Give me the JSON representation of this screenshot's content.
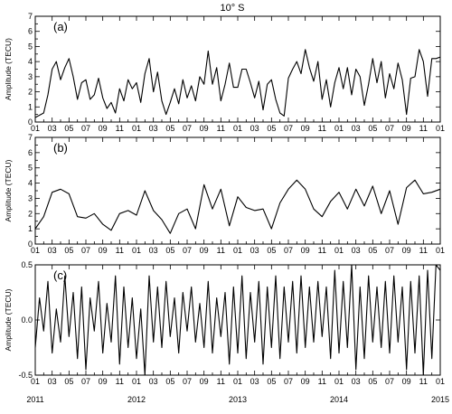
{
  "title": "10° S",
  "chart_data": [
    {
      "type": "line",
      "panel_tag": "(a)",
      "ylabel": "Amplitude (TECU)",
      "ylim": [
        0,
        7
      ],
      "yticks": [
        "0",
        "1",
        "2",
        "3",
        "4",
        "5",
        "6",
        "7"
      ],
      "xlim": [
        0,
        48
      ],
      "month_ticks": [
        "01",
        "03",
        "05",
        "07",
        "09",
        "11",
        "01",
        "03",
        "05",
        "07",
        "09",
        "11",
        "01",
        "03",
        "05",
        "07",
        "09",
        "11",
        "01",
        "03",
        "05",
        "07",
        "09",
        "11",
        "01"
      ],
      "series": [
        {
          "x": [
            0,
            1,
            1.5,
            2,
            2.5,
            3,
            3.5,
            4,
            4.5,
            5,
            5.5,
            6,
            6.5,
            7,
            7.5,
            8,
            8.5,
            9,
            9.5,
            10,
            10.5,
            11,
            11.5,
            12,
            12.5,
            13,
            13.5,
            14,
            14.5,
            15,
            15.5,
            16,
            16.5,
            17,
            17.5,
            18,
            18.5,
            19,
            19.5,
            20,
            20.5,
            21,
            21.5,
            22,
            22.5,
            23,
            23.5,
            24,
            24.5,
            25,
            25.5,
            26,
            26.5,
            27,
            27.5,
            28,
            28.5,
            29,
            29.5,
            30,
            30.5,
            31,
            31.5,
            32,
            32.5,
            33,
            33.5,
            34,
            34.5,
            35,
            35.5,
            36,
            36.5,
            37,
            37.5,
            38,
            38.5,
            39,
            39.5,
            40,
            40.5,
            41,
            41.5,
            42,
            42.5,
            43,
            43.5,
            44,
            44.5,
            45,
            45.5,
            46,
            46.5,
            47,
            47.5,
            48
          ],
          "y": [
            0.3,
            0.6,
            1.8,
            3.5,
            4,
            2.8,
            3.6,
            4.2,
            3,
            1.5,
            2.6,
            2.8,
            1.5,
            1.8,
            2.9,
            1.6,
            0.9,
            1.3,
            0.6,
            2.2,
            1.4,
            2.8,
            2.2,
            2.6,
            1.3,
            3.2,
            4.2,
            2,
            3.3,
            1.4,
            0.5,
            1.3,
            2.2,
            1.2,
            2.8,
            1.6,
            2.4,
            1.4,
            3,
            2.5,
            4.7,
            2.5,
            3.6,
            1.4,
            2.5,
            3.9,
            2.3,
            2.3,
            3.5,
            3.5,
            2.6,
            1.6,
            2.7,
            0.8,
            2.5,
            2.8,
            1.5,
            0.6,
            0.4,
            2.9,
            3.5,
            4,
            3.2,
            4.8,
            3.6,
            2.7,
            4,
            1.5,
            2.8,
            1,
            2.6,
            3.6,
            2.2,
            3.6,
            1.8,
            3.5,
            3,
            1.1,
            2.5,
            4.2,
            2.6,
            4,
            1.6,
            3.2,
            2.2,
            3.9,
            2.8,
            0.5,
            2.9,
            3,
            4.8,
            4,
            1.7,
            4.2,
            4.2,
            4.3
          ]
        }
      ]
    },
    {
      "type": "line",
      "panel_tag": "(b)",
      "ylabel": "Amplitude (TECU)",
      "ylim": [
        0,
        7
      ],
      "yticks": [
        "0",
        "1",
        "2",
        "3",
        "4",
        "5",
        "6",
        "7"
      ],
      "xlim": [
        0,
        48
      ],
      "month_ticks": [
        "01",
        "03",
        "05",
        "07",
        "09",
        "11",
        "01",
        "03",
        "05",
        "07",
        "09",
        "11",
        "01",
        "03",
        "05",
        "07",
        "09",
        "11",
        "01",
        "03",
        "05",
        "07",
        "09",
        "11",
        "01"
      ],
      "series": [
        {
          "x": [
            0,
            1,
            2,
            3,
            4,
            5,
            6,
            7,
            8,
            9,
            10,
            11,
            12,
            13,
            14,
            15,
            16,
            17,
            18,
            19,
            20,
            21,
            22,
            23,
            24,
            25,
            26,
            27,
            28,
            29,
            30,
            31,
            32,
            33,
            34,
            35,
            36,
            37,
            38,
            39,
            40,
            41,
            42,
            43,
            44,
            45,
            46,
            47,
            48
          ],
          "y": [
            1,
            1.8,
            3.4,
            3.6,
            3.3,
            1.8,
            1.7,
            2,
            1.3,
            0.9,
            2,
            2.2,
            1.9,
            3.5,
            2.2,
            1.6,
            0.7,
            2,
            2.3,
            1,
            3.9,
            2.3,
            3.6,
            1.2,
            3.1,
            2.4,
            2.2,
            2.3,
            1,
            2.7,
            3.6,
            4.2,
            3.6,
            2.3,
            1.8,
            2.8,
            3.4,
            2.3,
            3.6,
            2.5,
            3.8,
            2,
            3.5,
            1.3,
            3.7,
            4.2,
            3.3,
            3.4,
            3.6
          ]
        }
      ]
    },
    {
      "type": "line",
      "panel_tag": "(c)",
      "ylabel": "Amplitude (TECU)",
      "ylim": [
        -0.5,
        0.5
      ],
      "yticks": [
        "-0.5",
        "0.0",
        "0.5"
      ],
      "xlim": [
        0,
        48
      ],
      "month_ticks": [
        "01",
        "03",
        "05",
        "07",
        "09",
        "11",
        "01",
        "03",
        "05",
        "07",
        "09",
        "11",
        "01",
        "03",
        "05",
        "07",
        "09",
        "11",
        "01",
        "03",
        "05",
        "07",
        "09",
        "11",
        "01"
      ],
      "year_labels": [
        "2011",
        "2012",
        "2013",
        "2014",
        "2015"
      ],
      "series": [
        {
          "x": [
            0,
            0.5,
            1,
            1.5,
            2,
            2.5,
            3,
            3.5,
            4,
            4.5,
            5,
            5.5,
            6,
            6.5,
            7,
            7.5,
            8,
            8.5,
            9,
            9.5,
            10,
            10.5,
            11,
            11.5,
            12,
            12.5,
            13,
            13.5,
            14,
            14.5,
            15,
            15.5,
            16,
            16.5,
            17,
            17.5,
            18,
            18.5,
            19,
            19.5,
            20,
            20.5,
            21,
            21.5,
            22,
            22.5,
            23,
            23.5,
            24,
            24.5,
            25,
            25.5,
            26,
            26.5,
            27,
            27.5,
            28,
            28.5,
            29,
            29.5,
            30,
            30.5,
            31,
            31.5,
            32,
            32.5,
            33,
            33.5,
            34,
            34.5,
            35,
            35.5,
            36,
            36.5,
            37,
            37.5,
            38,
            38.5,
            39,
            39.5,
            40,
            40.5,
            41,
            41.5,
            42,
            42.5,
            43,
            43.5,
            44,
            44.5,
            45,
            45.5,
            46,
            46.5,
            47,
            47.5,
            48
          ],
          "y": [
            -0.25,
            0.2,
            -0.1,
            0.35,
            -0.3,
            0.1,
            -0.2,
            0.4,
            -0.15,
            0.25,
            -0.35,
            0.3,
            -0.45,
            0.2,
            -0.1,
            0.35,
            -0.3,
            0.15,
            -0.2,
            0.4,
            -0.4,
            0.3,
            -0.25,
            0.2,
            -0.35,
            0.1,
            -0.5,
            0.4,
            -0.2,
            0.3,
            -0.25,
            0.35,
            -0.15,
            0.2,
            -0.3,
            0.25,
            -0.1,
            0.3,
            -0.2,
            0.15,
            -0.25,
            0.35,
            -0.3,
            0.2,
            -0.15,
            0.25,
            -0.4,
            0.3,
            -0.3,
            0.4,
            -0.35,
            0.25,
            -0.2,
            0.35,
            -0.4,
            0.3,
            -0.25,
            0.4,
            -0.35,
            0.3,
            -0.2,
            0.35,
            -0.3,
            0.4,
            -0.25,
            0.3,
            -0.2,
            0.35,
            -0.15,
            0.3,
            -0.35,
            0.45,
            -0.3,
            0.35,
            -0.25,
            0.5,
            -0.45,
            0.3,
            -0.35,
            0.4,
            -0.2,
            0.3,
            -0.25,
            0.35,
            -0.3,
            0.4,
            -0.2,
            0.3,
            -0.45,
            0.35,
            -0.3,
            0.4,
            -0.5,
            0.45,
            -0.35,
            0.5,
            0.45
          ]
        }
      ]
    }
  ]
}
